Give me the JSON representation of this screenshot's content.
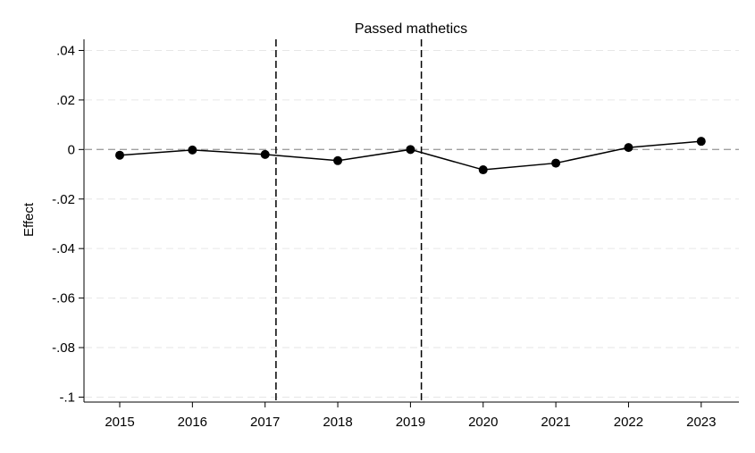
{
  "chart_data": {
    "type": "line",
    "title": "Passed mathetics",
    "xlabel": "",
    "ylabel": "Effect",
    "categories": [
      "2015",
      "2016",
      "2017",
      "2018",
      "2019",
      "2020",
      "2021",
      "2022",
      "2023"
    ],
    "series": [
      {
        "values": [
          -0.0023,
          -0.0002,
          -0.002,
          -0.0045,
          0.0,
          -0.0082,
          -0.0055,
          0.0008,
          0.0033
        ]
      }
    ],
    "ylim": [
      -0.102,
      0.0445
    ],
    "yticks": [
      0.04,
      0.02,
      0,
      -0.02,
      -0.04,
      -0.06,
      -0.08,
      -0.1
    ],
    "ytick_labels": [
      ".04",
      ".02",
      "0",
      "-.02",
      "-.04",
      "-.06",
      "-.08",
      "-.1"
    ],
    "reference_lines": {
      "horizontal": 0,
      "vertical": [
        2017.15,
        2019.15
      ]
    },
    "grid": true,
    "colors": {
      "line": "#000000",
      "marker": "#000000",
      "grid": "#e6e6e6",
      "zero_line": "#a0a0a0",
      "vertical_lines": "#000000"
    }
  }
}
